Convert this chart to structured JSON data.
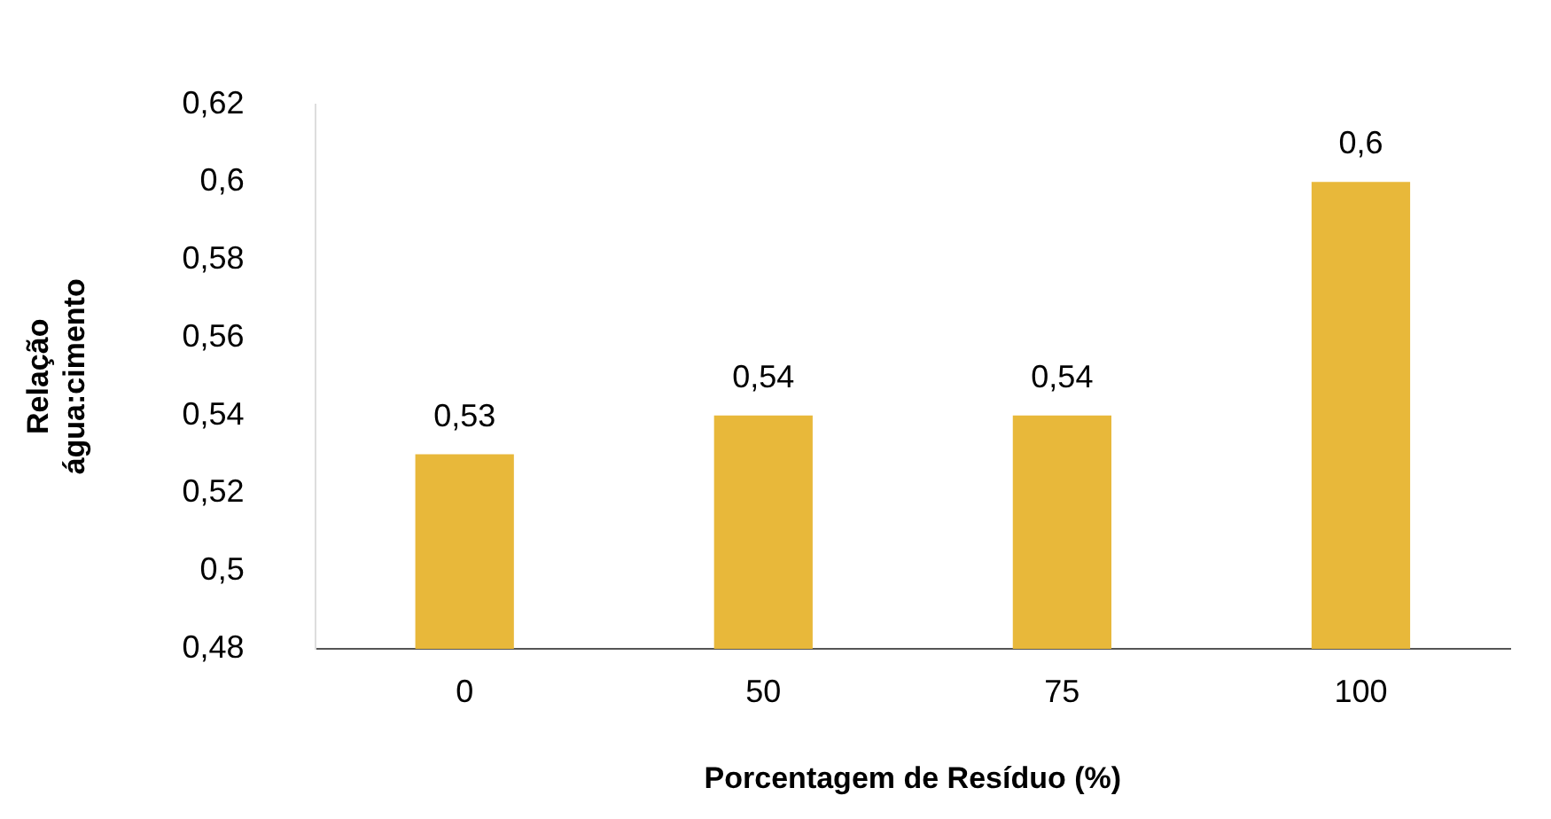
{
  "chart_data": {
    "type": "bar",
    "xlabel": "Porcentagem de Resíduo (%)",
    "ylabel": "Relação água:cimento",
    "categories": [
      "0",
      "50",
      "75",
      "100"
    ],
    "values": [
      0.53,
      0.54,
      0.54,
      0.6
    ],
    "value_labels": [
      "0,53",
      "0,54",
      "0,54",
      "0,6"
    ],
    "color": "#e8b83a",
    "ylim": [
      0.48,
      0.62
    ],
    "yticks": [
      {
        "value": 0.48,
        "label": "0,48"
      },
      {
        "value": 0.5,
        "label": "0,5"
      },
      {
        "value": 0.52,
        "label": "0,52"
      },
      {
        "value": 0.54,
        "label": "0,54"
      },
      {
        "value": 0.56,
        "label": "0,56"
      },
      {
        "value": 0.58,
        "label": "0,58"
      },
      {
        "value": 0.6,
        "label": "0,6"
      },
      {
        "value": 0.62,
        "label": "0,62"
      }
    ],
    "grid": false,
    "legend": false
  }
}
